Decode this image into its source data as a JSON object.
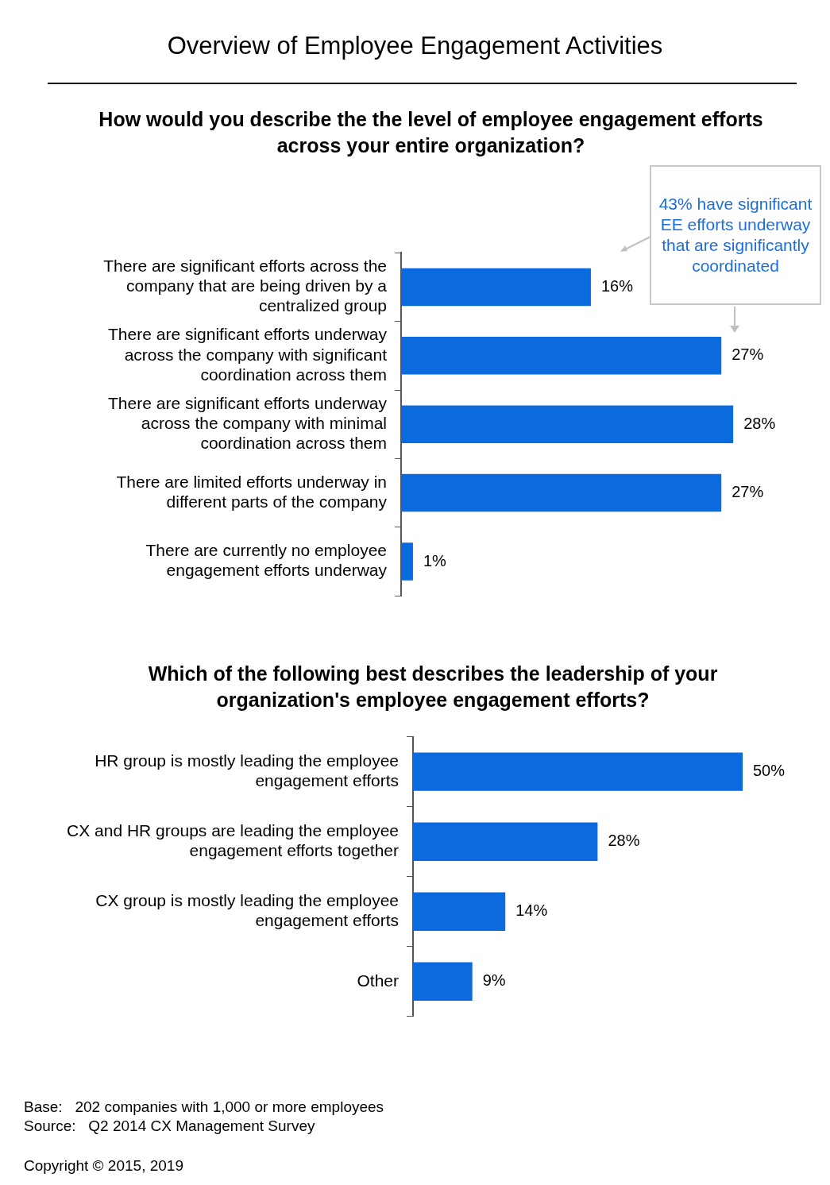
{
  "chart_data": [
    {
      "type": "bar",
      "orientation": "horizontal",
      "title": "Overview of Employee Engagement Activities",
      "subtitle": "How would you describe the the level of employee engagement efforts across your entire organization?",
      "categories": [
        "There are significant efforts across the company that are being driven by a centralized group",
        "There are significant efforts underway across the company with significant coordination across them",
        "There are significant efforts underway across the company with minimal coordination across them",
        "There are limited efforts underway in different parts of the company",
        "There are currently no employee engagement efforts underway"
      ],
      "values": [
        16,
        27,
        28,
        27,
        1
      ],
      "color": "#0b6ade",
      "value_labels": [
        "16%",
        "27%",
        "28%",
        "27%",
        "1%"
      ],
      "tick_labels": "y",
      "legend": false,
      "annotations": [
        "43% have significant EE efforts underway that are significantly coordinated"
      ]
    },
    {
      "type": "bar",
      "orientation": "horizontal",
      "title": "Which of the following best describes the leadership of your organization's employee engagement efforts?",
      "categories": [
        "HR group is mostly leading the employee engagement efforts",
        "CX and HR groups are leading the employee engagement efforts together",
        "CX group is mostly leading the employee engagement efforts",
        "Other"
      ],
      "values": [
        50,
        28,
        14,
        9
      ],
      "color": "#0b6ade",
      "value_labels": [
        "50%",
        "28%",
        "14%",
        "9%"
      ],
      "tick_labels": "y",
      "legend": false,
      "annotations": [
        "Base:   202 companies with 1,000 or more employees",
        "Source:   Q2 2014 CX Management Survey",
        "Copyright © 2015, 2019"
      ]
    }
  ]
}
